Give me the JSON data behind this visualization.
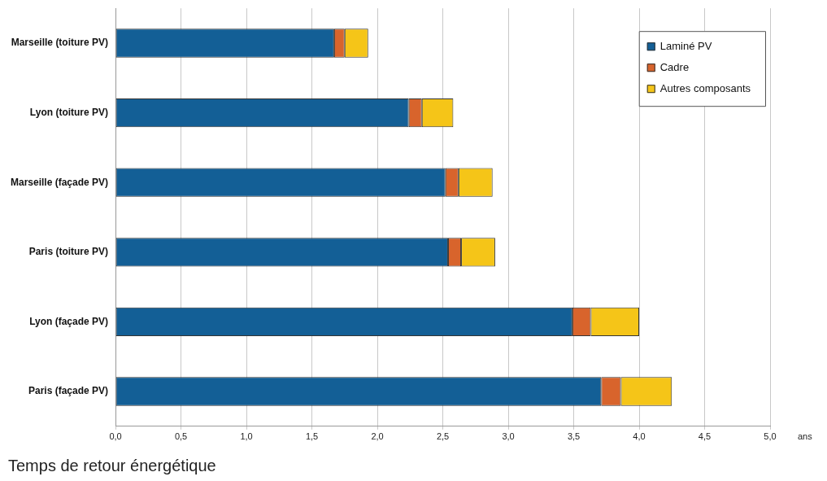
{
  "chart_data": {
    "type": "bar",
    "orientation": "horizontal",
    "stacked": true,
    "title": "Temps de retour énergétique",
    "xlabel": "ans",
    "categories": [
      "Marseille (toiture PV)",
      "Lyon (toiture PV)",
      "Marseille (façade PV)",
      "Paris (toiture PV)",
      "Lyon (façade PV)",
      "Paris (façade PV)"
    ],
    "series": [
      {
        "name": "Laminé PV",
        "color": "#135f96",
        "values": [
          1.67,
          2.24,
          2.52,
          2.54,
          3.49,
          3.71
        ]
      },
      {
        "name": "Cadre",
        "color": "#d8642c",
        "values": [
          0.08,
          0.1,
          0.1,
          0.1,
          0.14,
          0.15
        ]
      },
      {
        "name": "Autres composants",
        "color": "#f5c518",
        "values": [
          0.18,
          0.24,
          0.26,
          0.26,
          0.37,
          0.39
        ]
      }
    ],
    "xlim": [
      0,
      5
    ],
    "xticks": [
      {
        "value": 0,
        "label": "0,0"
      },
      {
        "value": 0.5,
        "label": "0,5"
      },
      {
        "value": 1,
        "label": "1,0"
      },
      {
        "value": 1.5,
        "label": "1,5"
      },
      {
        "value": 2,
        "label": "2,0"
      },
      {
        "value": 2.5,
        "label": "2,5"
      },
      {
        "value": 3,
        "label": "3,0"
      },
      {
        "value": 3.5,
        "label": "3,5"
      },
      {
        "value": 4,
        "label": "4,0"
      },
      {
        "value": 4.5,
        "label": "4,5"
      },
      {
        "value": 5,
        "label": "5,0"
      }
    ],
    "grid": "x",
    "legend": "top right"
  }
}
